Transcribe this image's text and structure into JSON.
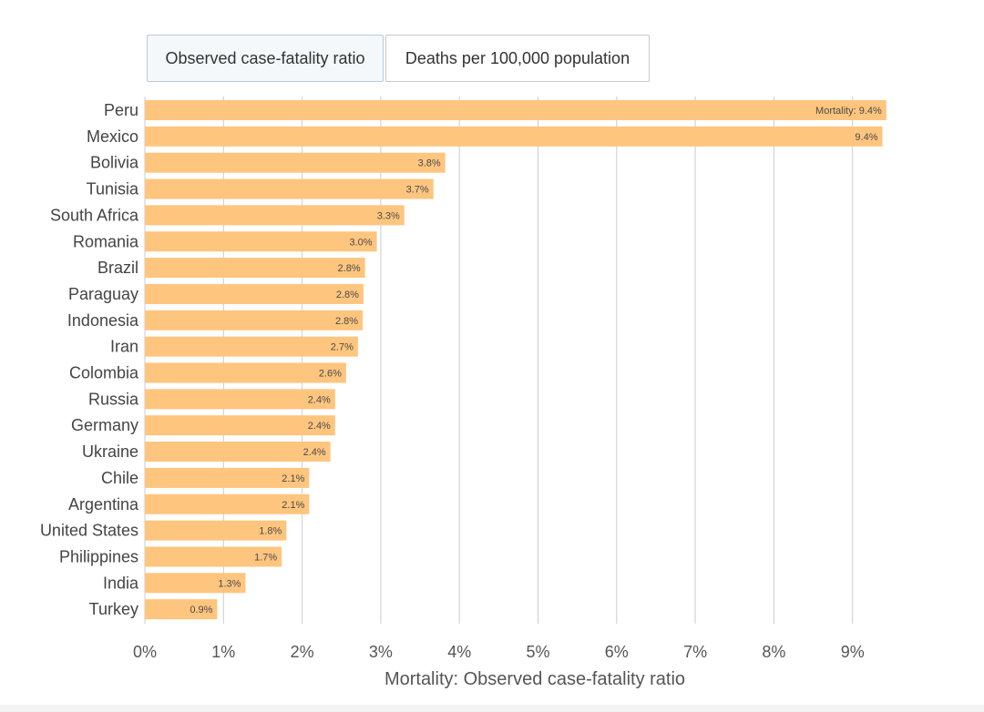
{
  "tabs": [
    {
      "label": "Observed case-fatality ratio",
      "active": true
    },
    {
      "label": "Deaths per 100,000 population",
      "active": false
    }
  ],
  "colors": {
    "bar": "#fec57e",
    "grid": "#cccccc",
    "text": "#444444"
  },
  "chart_data": {
    "type": "bar",
    "orientation": "horizontal",
    "title": "",
    "xlabel": "Mortality: Observed case-fatality ratio",
    "ylabel": "",
    "xlim": [
      0,
      9.5
    ],
    "xticks": [
      0,
      1,
      2,
      3,
      4,
      5,
      6,
      7,
      8,
      9
    ],
    "xtick_labels": [
      "0%",
      "1%",
      "2%",
      "3%",
      "4%",
      "5%",
      "6%",
      "7%",
      "8%",
      "9%"
    ],
    "grid": true,
    "categories": [
      "Peru",
      "Mexico",
      "Bolivia",
      "Tunisia",
      "South Africa",
      "Romania",
      "Brazil",
      "Paraguay",
      "Indonesia",
      "Iran",
      "Colombia",
      "Russia",
      "Germany",
      "Ukraine",
      "Chile",
      "Argentina",
      "United States",
      "Philippines",
      "India",
      "Turkey"
    ],
    "values": [
      9.43,
      9.38,
      3.82,
      3.67,
      3.3,
      2.95,
      2.8,
      2.78,
      2.77,
      2.71,
      2.56,
      2.42,
      2.42,
      2.36,
      2.09,
      2.09,
      1.8,
      1.74,
      1.28,
      0.92
    ],
    "data_labels": [
      "Mortality: 9.4%",
      "9.4%",
      "3.8%",
      "3.7%",
      "3.3%",
      "3.0%",
      "2.8%",
      "2.8%",
      "2.8%",
      "2.7%",
      "2.6%",
      "2.4%",
      "2.4%",
      "2.4%",
      "2.1%",
      "2.1%",
      "1.8%",
      "1.7%",
      "1.3%",
      "0.9%"
    ]
  }
}
